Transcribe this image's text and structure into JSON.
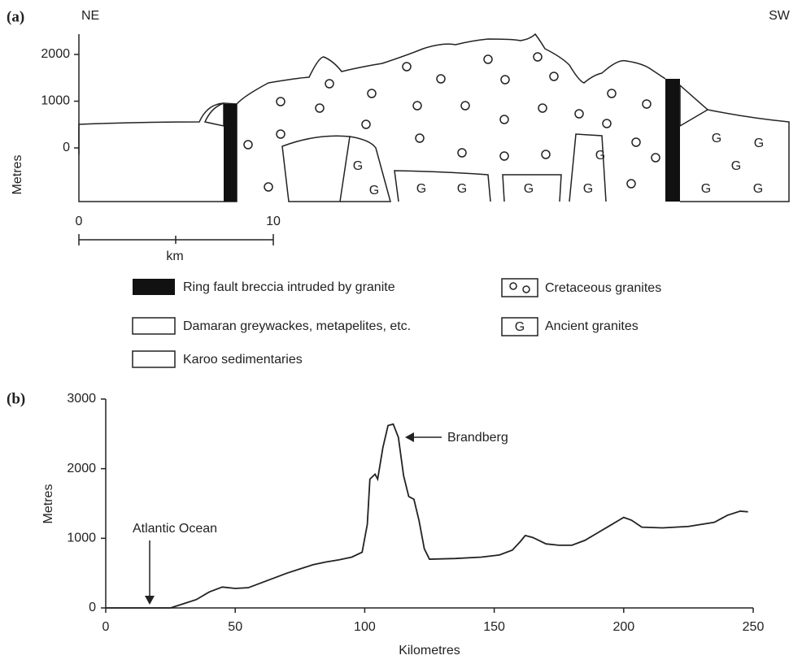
{
  "panel_a": {
    "label": "(a)",
    "left_direction": "NE",
    "right_direction": "SW",
    "ylabel": "Metres",
    "yticks": [
      0,
      1000,
      2000
    ],
    "scale_ticks": [
      0,
      10
    ],
    "scale_unit": "km",
    "legend": [
      "Ring fault breccia intruded by granite",
      "Damaran greywackes, metapelites, etc.",
      "Karoo sedimentaries",
      "Cretaceous granites",
      "Ancient granites"
    ],
    "symbol": "G"
  },
  "chart_data": {
    "type": "line",
    "panel_label": "(b)",
    "xlabel": "Kilometres",
    "ylabel": "Metres",
    "color": "#222222",
    "x": [
      0,
      25,
      30,
      35,
      40,
      45,
      50,
      55,
      60,
      65,
      70,
      75,
      80,
      85,
      90,
      95,
      99,
      101,
      102,
      104,
      105,
      107,
      109,
      111,
      113,
      115,
      117,
      119,
      121,
      123,
      125,
      135,
      145,
      152,
      157,
      160,
      162,
      165,
      170,
      175,
      180,
      185,
      190,
      195,
      200,
      203,
      207,
      215,
      225,
      235,
      240,
      245,
      248
    ],
    "values": [
      0,
      0,
      60,
      120,
      230,
      300,
      280,
      290,
      360,
      430,
      500,
      560,
      620,
      660,
      690,
      730,
      800,
      1200,
      1850,
      1920,
      1850,
      2300,
      2620,
      2640,
      2450,
      1900,
      1600,
      1560,
      1250,
      850,
      700,
      710,
      730,
      760,
      830,
      950,
      1040,
      1010,
      920,
      900,
      900,
      970,
      1080,
      1190,
      1300,
      1260,
      1160,
      1150,
      1170,
      1230,
      1330,
      1390,
      1380
    ],
    "xlim": [
      0,
      250
    ],
    "ylim": [
      0,
      3000
    ],
    "xticks": [
      0,
      50,
      100,
      150,
      200,
      250
    ],
    "yticks": [
      0,
      1000,
      2000,
      3000
    ],
    "annotations": [
      "Atlantic Ocean",
      "Brandberg"
    ]
  }
}
